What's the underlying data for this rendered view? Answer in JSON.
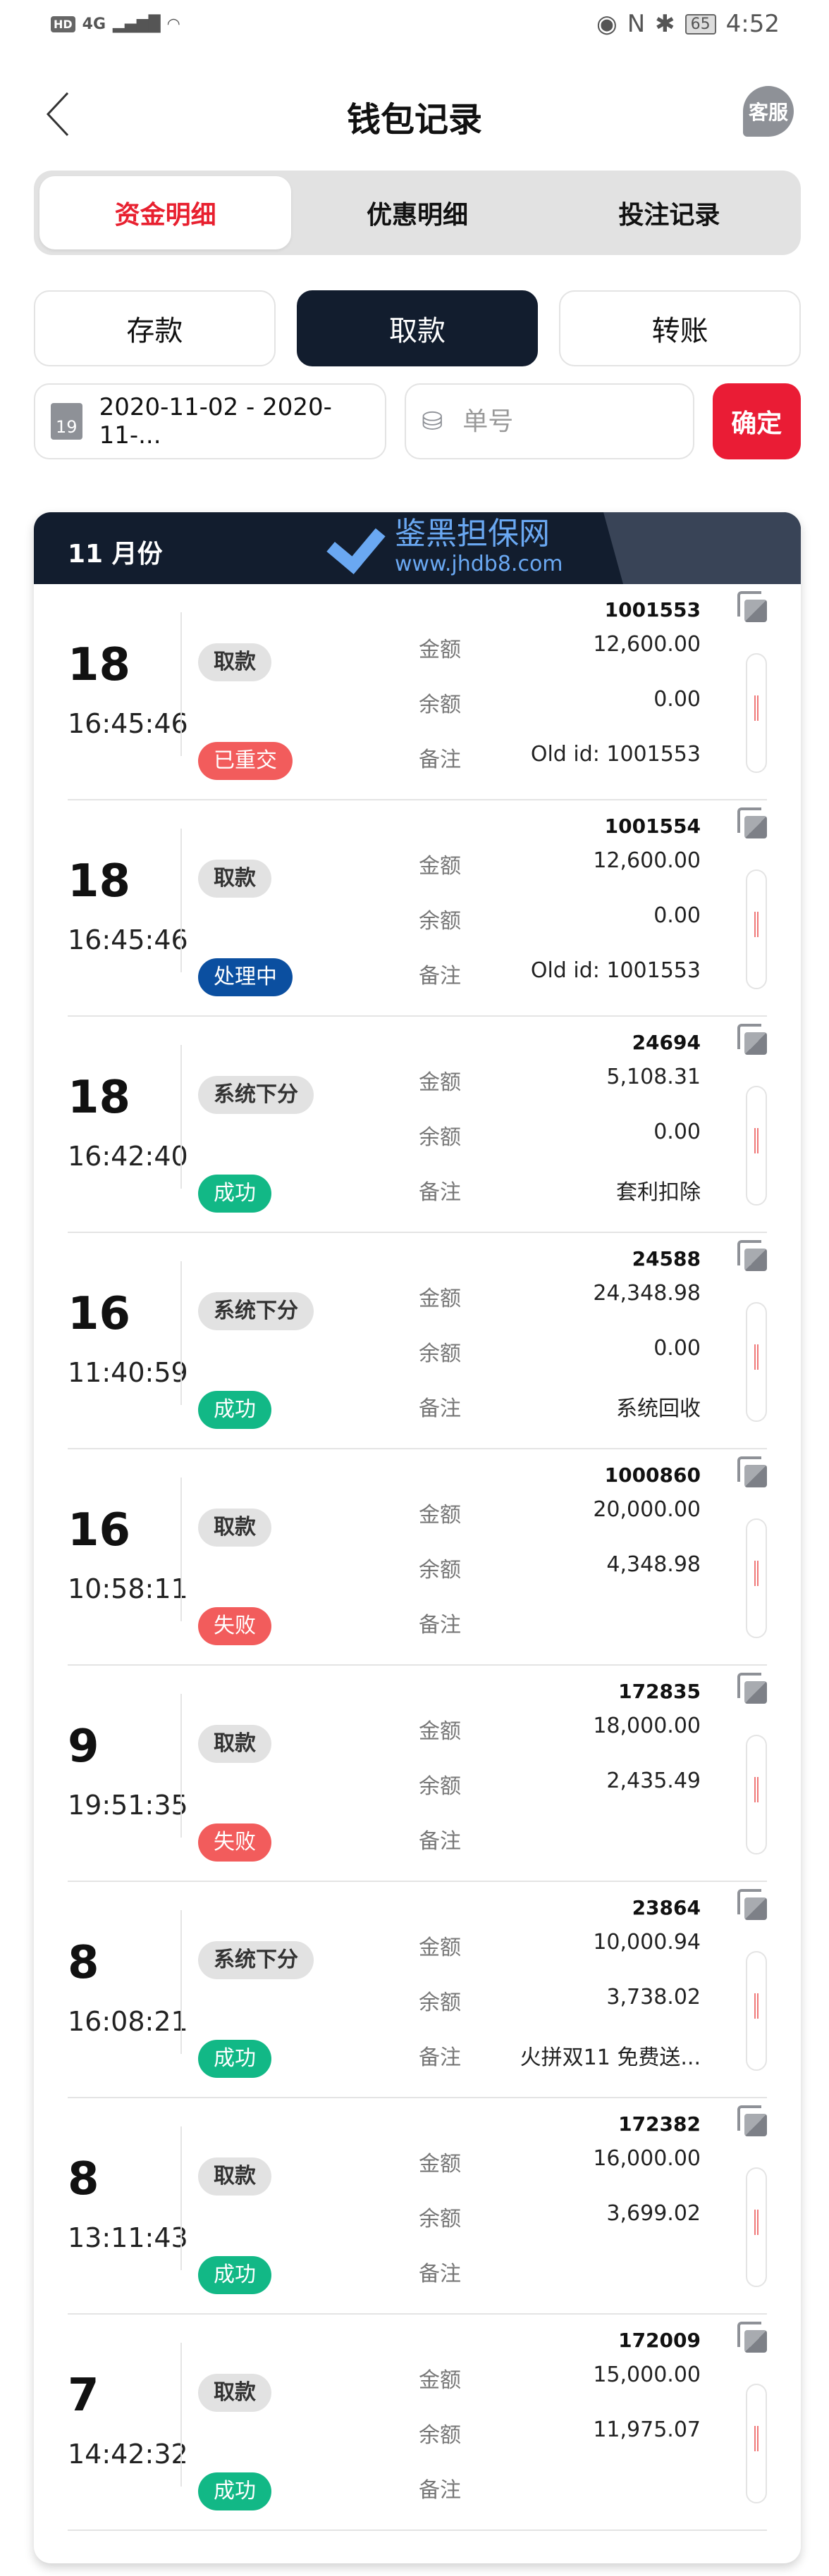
{
  "status_bar": {
    "left": [
      "HD",
      "4G"
    ],
    "battery": "65",
    "time": "4:52"
  },
  "header": {
    "title": "钱包记录",
    "support": "客服"
  },
  "tabs": [
    {
      "label": "资金明细",
      "active": true
    },
    {
      "label": "优惠明细"
    },
    {
      "label": "投注记录"
    }
  ],
  "types": [
    {
      "label": "存款"
    },
    {
      "label": "取款",
      "active": true
    },
    {
      "label": "转账"
    }
  ],
  "filters": {
    "calendar_day": "19",
    "date_range": "2020-11-02 - 2020-11-...",
    "order_placeholder": "单号",
    "order_value": "",
    "confirm": "确定"
  },
  "month": "11 月份",
  "labels": {
    "amount": "金额",
    "balance": "余额",
    "remark": "备注"
  },
  "colors": {
    "accent": "#ea1c35",
    "dark": "#121d2e",
    "success": "#12b886",
    "fail": "#f25c5c",
    "processing": "#0b4fa0"
  },
  "records": [
    {
      "day": "18",
      "time": "16:45:46",
      "type": "取款",
      "status": "已重交",
      "status_color": "#f25c5c",
      "order": "1001553",
      "amount": "12,600.00",
      "balance": "0.00",
      "remark": "Old id: 1001553"
    },
    {
      "day": "18",
      "time": "16:45:46",
      "type": "取款",
      "status": "处理中",
      "status_color": "#0b4fa0",
      "order": "1001554",
      "amount": "12,600.00",
      "balance": "0.00",
      "remark": "Old id: 1001553"
    },
    {
      "day": "18",
      "time": "16:42:40",
      "type": "系统下分",
      "status": "成功",
      "status_color": "#12b886",
      "order": "24694",
      "amount": "5,108.31",
      "balance": "0.00",
      "remark": "套利扣除"
    },
    {
      "day": "16",
      "time": "11:40:59",
      "type": "系统下分",
      "status": "成功",
      "status_color": "#12b886",
      "order": "24588",
      "amount": "24,348.98",
      "balance": "0.00",
      "remark": "系统回收"
    },
    {
      "day": "16",
      "time": "10:58:11",
      "type": "取款",
      "status": "失败",
      "status_color": "#f25c5c",
      "order": "1000860",
      "amount": "20,000.00",
      "balance": "4,348.98",
      "remark": ""
    },
    {
      "day": "9",
      "time": "19:51:35",
      "type": "取款",
      "status": "失败",
      "status_color": "#f25c5c",
      "order": "172835",
      "amount": "18,000.00",
      "balance": "2,435.49",
      "remark": ""
    },
    {
      "day": "8",
      "time": "16:08:21",
      "type": "系统下分",
      "status": "成功",
      "status_color": "#12b886",
      "order": "23864",
      "amount": "10,000.94",
      "balance": "3,738.02",
      "remark": "火拼双11 免费送..."
    },
    {
      "day": "8",
      "time": "13:11:43",
      "type": "取款",
      "status": "成功",
      "status_color": "#12b886",
      "order": "172382",
      "amount": "16,000.00",
      "balance": "3,699.02",
      "remark": ""
    },
    {
      "day": "7",
      "time": "14:42:32",
      "type": "取款",
      "status": "成功",
      "status_color": "#12b886",
      "order": "172009",
      "amount": "15,000.00",
      "balance": "11,975.07",
      "remark": ""
    }
  ],
  "watermark": {
    "name": "鉴黑担保网",
    "url": "www.jhdb8.com"
  }
}
